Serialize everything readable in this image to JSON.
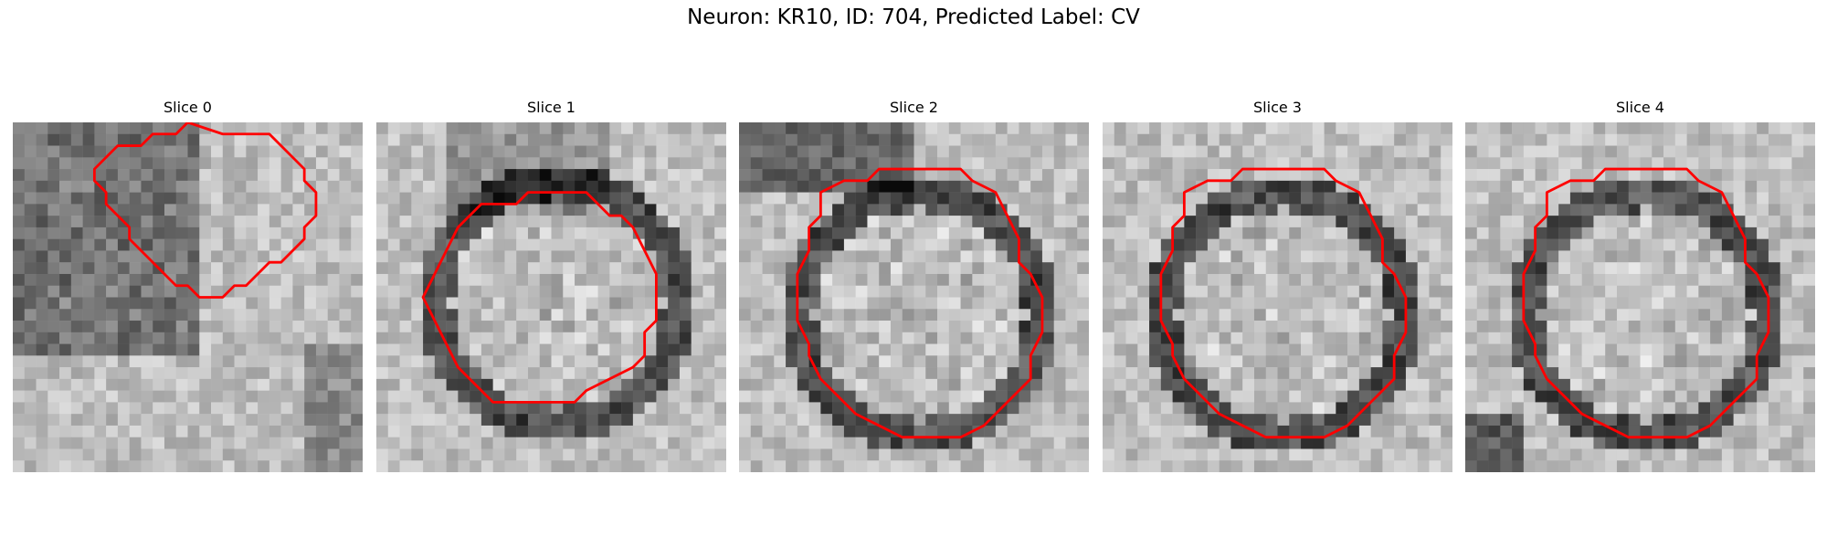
{
  "figure": {
    "title": "Neuron: KR10, ID: 704, Predicted Label: CV",
    "contour_color": "#ff0000",
    "image_colormap": "grayscale"
  },
  "slices": [
    {
      "title": "Slice 0",
      "contour": [
        [
          18,
          1
        ],
        [
          22,
          1
        ],
        [
          25,
          4
        ],
        [
          25,
          5
        ],
        [
          26,
          6
        ],
        [
          26,
          8
        ],
        [
          25,
          9
        ],
        [
          25,
          10
        ],
        [
          23,
          12
        ],
        [
          22,
          12
        ],
        [
          20,
          14
        ],
        [
          19,
          14
        ],
        [
          18,
          15
        ],
        [
          16,
          15
        ],
        [
          15,
          14
        ],
        [
          14,
          14
        ],
        [
          10,
          10
        ],
        [
          10,
          9
        ],
        [
          9,
          8
        ],
        [
          9,
          8
        ],
        [
          8,
          7
        ],
        [
          8,
          6
        ],
        [
          7,
          5
        ],
        [
          7,
          4
        ],
        [
          8,
          3
        ],
        [
          9,
          2
        ],
        [
          11,
          2
        ],
        [
          12,
          1
        ],
        [
          14,
          1
        ],
        [
          15,
          0
        ]
      ],
      "center": [
        17,
        8
      ]
    },
    {
      "title": "Slice 1",
      "contour": [
        [
          14,
          6
        ],
        [
          18,
          6
        ],
        [
          20,
          8
        ],
        [
          21,
          8
        ],
        [
          22,
          9
        ],
        [
          23,
          11
        ],
        [
          24,
          13
        ],
        [
          24,
          17
        ],
        [
          23,
          18
        ],
        [
          23,
          20
        ],
        [
          22,
          21
        ],
        [
          20,
          22
        ],
        [
          18,
          23
        ],
        [
          17,
          24
        ],
        [
          10,
          24
        ],
        [
          9,
          23
        ],
        [
          8,
          22
        ],
        [
          7,
          21
        ],
        [
          6,
          19
        ],
        [
          5,
          17
        ],
        [
          4,
          15
        ],
        [
          5,
          13
        ],
        [
          6,
          11
        ],
        [
          7,
          9
        ],
        [
          8,
          8
        ],
        [
          9,
          7
        ],
        [
          12,
          7
        ],
        [
          13,
          6
        ]
      ],
      "center": [
        15,
        15
      ]
    },
    {
      "title": "Slice 2",
      "contour": [
        [
          13,
          4
        ],
        [
          19,
          4
        ],
        [
          20,
          5
        ],
        [
          22,
          6
        ],
        [
          23,
          8
        ],
        [
          24,
          10
        ],
        [
          24,
          12
        ],
        [
          25,
          13
        ],
        [
          26,
          15
        ],
        [
          26,
          18
        ],
        [
          25,
          20
        ],
        [
          25,
          22
        ],
        [
          24,
          23
        ],
        [
          23,
          24
        ],
        [
          22,
          25
        ],
        [
          21,
          26
        ],
        [
          19,
          27
        ],
        [
          14,
          27
        ],
        [
          12,
          26
        ],
        [
          10,
          25
        ],
        [
          9,
          24
        ],
        [
          8,
          23
        ],
        [
          7,
          22
        ],
        [
          6,
          20
        ],
        [
          6,
          19
        ],
        [
          5,
          17
        ],
        [
          5,
          15
        ],
        [
          5,
          13
        ],
        [
          6,
          11
        ],
        [
          6,
          9
        ],
        [
          7,
          8
        ],
        [
          7,
          6
        ],
        [
          9,
          5
        ],
        [
          11,
          5
        ],
        [
          12,
          4
        ]
      ],
      "center": [
        15,
        16
      ]
    },
    {
      "title": "Slice 3",
      "contour": [
        [
          13,
          4
        ],
        [
          19,
          4
        ],
        [
          20,
          5
        ],
        [
          22,
          6
        ],
        [
          23,
          8
        ],
        [
          24,
          10
        ],
        [
          24,
          12
        ],
        [
          25,
          13
        ],
        [
          26,
          15
        ],
        [
          26,
          18
        ],
        [
          25,
          20
        ],
        [
          25,
          22
        ],
        [
          24,
          23
        ],
        [
          23,
          24
        ],
        [
          22,
          25
        ],
        [
          21,
          26
        ],
        [
          19,
          27
        ],
        [
          14,
          27
        ],
        [
          12,
          26
        ],
        [
          10,
          25
        ],
        [
          9,
          24
        ],
        [
          8,
          23
        ],
        [
          7,
          22
        ],
        [
          6,
          20
        ],
        [
          6,
          19
        ],
        [
          5,
          17
        ],
        [
          5,
          15
        ],
        [
          5,
          13
        ],
        [
          6,
          11
        ],
        [
          6,
          9
        ],
        [
          7,
          8
        ],
        [
          7,
          6
        ],
        [
          9,
          5
        ],
        [
          11,
          5
        ],
        [
          12,
          4
        ]
      ],
      "center": [
        15,
        16
      ]
    },
    {
      "title": "Slice 4",
      "contour": [
        [
          13,
          4
        ],
        [
          19,
          4
        ],
        [
          20,
          5
        ],
        [
          22,
          6
        ],
        [
          23,
          8
        ],
        [
          24,
          10
        ],
        [
          24,
          12
        ],
        [
          25,
          13
        ],
        [
          26,
          15
        ],
        [
          26,
          18
        ],
        [
          25,
          20
        ],
        [
          25,
          22
        ],
        [
          24,
          23
        ],
        [
          23,
          24
        ],
        [
          22,
          25
        ],
        [
          21,
          26
        ],
        [
          19,
          27
        ],
        [
          14,
          27
        ],
        [
          12,
          26
        ],
        [
          10,
          25
        ],
        [
          9,
          24
        ],
        [
          8,
          23
        ],
        [
          7,
          22
        ],
        [
          6,
          20
        ],
        [
          6,
          19
        ],
        [
          5,
          17
        ],
        [
          5,
          15
        ],
        [
          5,
          13
        ],
        [
          6,
          11
        ],
        [
          6,
          9
        ],
        [
          7,
          8
        ],
        [
          7,
          6
        ],
        [
          9,
          5
        ],
        [
          11,
          5
        ],
        [
          12,
          4
        ]
      ],
      "center": [
        15,
        16
      ]
    }
  ]
}
